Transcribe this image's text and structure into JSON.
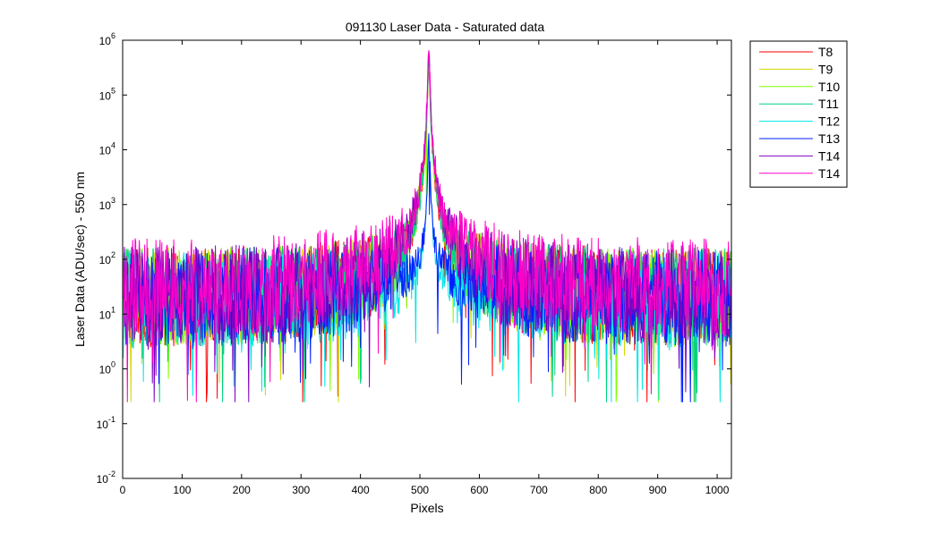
{
  "chart_data": {
    "type": "line",
    "title": "091130 Laser Data - Saturated data",
    "xlabel": "Pixels",
    "ylabel": "Laser Data (ADU/sec) - 550 nm",
    "xlim": [
      0,
      1024
    ],
    "ylim": [
      0.01,
      1000000
    ],
    "yscale": "log",
    "legend_position": "outside-top-right",
    "x_ticks": [
      0,
      100,
      200,
      300,
      400,
      500,
      600,
      700,
      800,
      900,
      1000
    ],
    "y_ticks": [
      {
        "value": 0.01,
        "base": "10",
        "exp": "-2"
      },
      {
        "value": 0.1,
        "base": "10",
        "exp": "-1"
      },
      {
        "value": 1,
        "base": "10",
        "exp": "0"
      },
      {
        "value": 10,
        "base": "10",
        "exp": "1"
      },
      {
        "value": 100,
        "base": "10",
        "exp": "2"
      },
      {
        "value": 1000,
        "base": "10",
        "exp": "3"
      },
      {
        "value": 10000,
        "base": "10",
        "exp": "4"
      },
      {
        "value": 100000,
        "base": "10",
        "exp": "5"
      },
      {
        "value": 1000000,
        "base": "10",
        "exp": "6"
      }
    ],
    "peak_pixel": 515,
    "series": [
      {
        "name": "T8",
        "color": "#ff0000",
        "peak": 400000,
        "plateau": 60,
        "floor": 20
      },
      {
        "name": "T9",
        "color": "#d7d700",
        "peak": 400000,
        "plateau": 60,
        "floor": 20
      },
      {
        "name": "T10",
        "color": "#80ff00",
        "peak": 400000,
        "plateau": 60,
        "floor": 20
      },
      {
        "name": "T11",
        "color": "#00d280",
        "peak": 400000,
        "plateau": 60,
        "floor": 20
      },
      {
        "name": "T12",
        "color": "#00e6e6",
        "peak": 15000,
        "plateau": 30,
        "floor": 18
      },
      {
        "name": "T13",
        "color": "#0020ff",
        "peak": 15000,
        "plateau": 55,
        "floor": 20
      },
      {
        "name": "T14",
        "color": "#8000c0",
        "peak": 600000,
        "plateau": 60,
        "floor": 22
      },
      {
        "name": "T14",
        "color": "#ff00c8",
        "peak": 600000,
        "plateau": 150,
        "floor": 30
      }
    ]
  }
}
